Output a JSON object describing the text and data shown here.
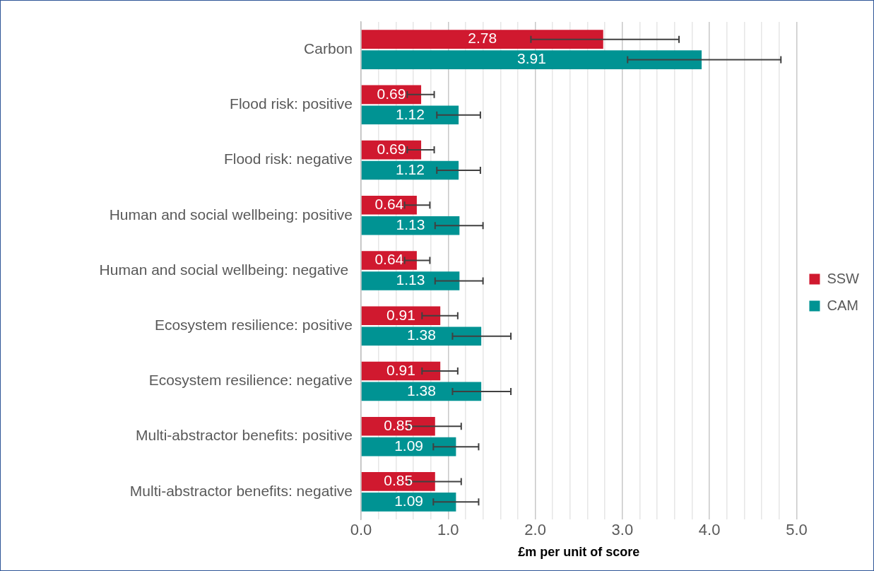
{
  "chart_data": {
    "type": "bar",
    "orientation": "horizontal",
    "xlabel": "£m per unit of score",
    "categories": [
      "Carbon",
      "Flood risk: positive",
      "Flood risk: negative",
      "Human and social wellbeing: positive",
      "Human and social wellbeing: negative ",
      "Ecosystem resilience: positive",
      "Ecosystem resilience: negative",
      "Multi-abstractor benefits: positive",
      "Multi-abstractor benefits: negative"
    ],
    "series": [
      {
        "name": "SSW",
        "color": "#d0192f",
        "values": [
          2.78,
          0.69,
          0.69,
          0.64,
          0.64,
          0.91,
          0.91,
          0.85,
          0.85
        ],
        "errors": [
          [
            1.95,
            3.65
          ],
          [
            0.53,
            0.84
          ],
          [
            0.53,
            0.84
          ],
          [
            0.5,
            0.79
          ],
          [
            0.5,
            0.79
          ],
          [
            0.7,
            1.11
          ],
          [
            0.7,
            1.11
          ],
          [
            0.55,
            1.15
          ],
          [
            0.55,
            1.15
          ]
        ]
      },
      {
        "name": "CAM",
        "color": "#009393",
        "values": [
          3.91,
          1.12,
          1.12,
          1.13,
          1.13,
          1.38,
          1.38,
          1.09,
          1.09
        ],
        "errors": [
          [
            3.06,
            4.82
          ],
          [
            0.87,
            1.37
          ],
          [
            0.87,
            1.37
          ],
          [
            0.85,
            1.4
          ],
          [
            0.85,
            1.4
          ],
          [
            1.05,
            1.72
          ],
          [
            1.05,
            1.72
          ],
          [
            0.83,
            1.35
          ],
          [
            0.83,
            1.35
          ]
        ]
      }
    ],
    "xlim": [
      0,
      5
    ],
    "xticks": [
      {
        "value": 0,
        "label": "0.0"
      },
      {
        "value": 0.2,
        "label": null
      },
      {
        "value": 0.4,
        "label": null
      },
      {
        "value": 0.6,
        "label": null
      },
      {
        "value": 0.8,
        "label": null
      },
      {
        "value": 1,
        "label": "1.0"
      },
      {
        "value": 1.2,
        "label": null
      },
      {
        "value": 1.4,
        "label": null
      },
      {
        "value": 1.6,
        "label": null
      },
      {
        "value": 1.8,
        "label": null
      },
      {
        "value": 2,
        "label": "2.0"
      },
      {
        "value": 2.2,
        "label": null
      },
      {
        "value": 2.4,
        "label": null
      },
      {
        "value": 2.6,
        "label": null
      },
      {
        "value": 2.8,
        "label": null
      },
      {
        "value": 3,
        "label": "3.0"
      },
      {
        "value": 3.2,
        "label": null
      },
      {
        "value": 3.4,
        "label": null
      },
      {
        "value": 3.6,
        "label": null
      },
      {
        "value": 3.8,
        "label": null
      },
      {
        "value": 4,
        "label": "4.0"
      },
      {
        "value": 4.2,
        "label": null
      },
      {
        "value": 4.4,
        "label": null
      },
      {
        "value": 4.6,
        "label": null
      },
      {
        "value": 4.8,
        "label": null
      },
      {
        "value": 5,
        "label": "5.0"
      }
    ],
    "grid": "x",
    "legend": "right",
    "data_labels": true
  }
}
